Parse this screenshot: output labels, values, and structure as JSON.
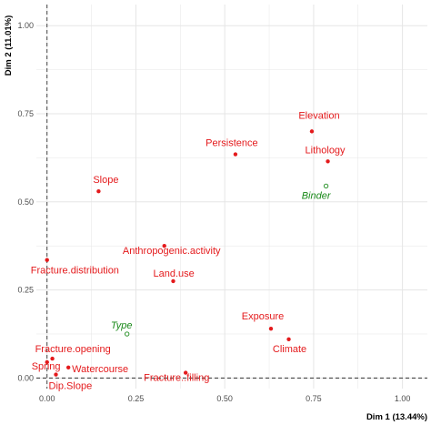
{
  "chart_data": {
    "type": "scatter",
    "xlabel": "Dim 1 (13.44%)",
    "ylabel": "Dim 2 (11.01%)",
    "xlim": [
      -0.03,
      1.07
    ],
    "ylim": [
      -0.03,
      1.06
    ],
    "x_ticks": [
      "0.00",
      "0.25",
      "0.50",
      "0.75",
      "1.00"
    ],
    "y_ticks": [
      "0.00",
      "0.25",
      "0.50",
      "0.75",
      "1.00"
    ],
    "grid": true,
    "reference_lines": {
      "x": 0,
      "y": 0,
      "style": "dashed"
    },
    "colors": {
      "active": "#e41a1c",
      "supplementary": "#1a8a1a",
      "grid": "#e5e5e5",
      "axis_text": "#4d4d4d"
    },
    "active_variables": [
      {
        "name": "Elevation",
        "x": 0.745,
        "y": 0.7
      },
      {
        "name": "Persistence",
        "x": 0.53,
        "y": 0.635
      },
      {
        "name": "Lithology",
        "x": 0.79,
        "y": 0.615
      },
      {
        "name": "Slope",
        "x": 0.145,
        "y": 0.53
      },
      {
        "name": "Anthropogenic.activity",
        "x": 0.33,
        "y": 0.375
      },
      {
        "name": "Fracture.distribution",
        "x": 0.0,
        "y": 0.335
      },
      {
        "name": "Land.use",
        "x": 0.355,
        "y": 0.275
      },
      {
        "name": "Exposure",
        "x": 0.63,
        "y": 0.14
      },
      {
        "name": "Climate",
        "x": 0.68,
        "y": 0.11
      },
      {
        "name": "Fracture.opening",
        "x": 0.015,
        "y": 0.055
      },
      {
        "name": "Spring",
        "x": 0.0,
        "y": 0.045
      },
      {
        "name": "Watercourse",
        "x": 0.06,
        "y": 0.03
      },
      {
        "name": "Dip.Slope",
        "x": 0.025,
        "y": 0.01
      },
      {
        "name": "Fracture..filling",
        "x": 0.39,
        "y": 0.015
      }
    ],
    "supplementary_variables": [
      {
        "name": "Binder",
        "x": 0.785,
        "y": 0.545
      },
      {
        "name": "Type",
        "x": 0.225,
        "y": 0.125
      }
    ]
  }
}
